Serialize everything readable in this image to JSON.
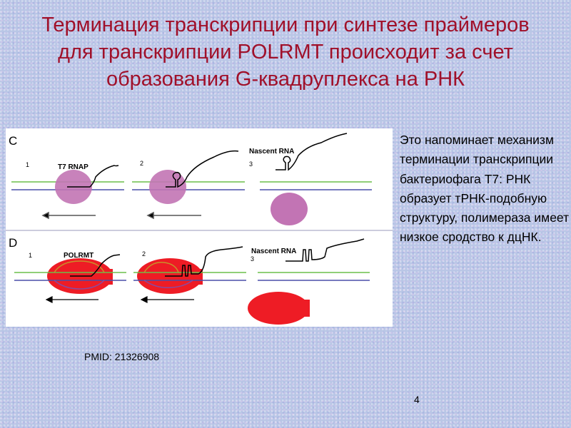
{
  "slide": {
    "title_lines": [
      "Терминация транскрипции при синтезе праймеров",
      "для транскрипции POLRMT происходит за счет",
      "образования G-квадруплекса на РНК"
    ],
    "side_text": "Это напоминает механизм терминации транскрипции бактериофага Т7: РНК образует тРНК-подобную структуру, полимераза имеет низкое сродство к дцНК.",
    "pmid": "PMID: 21326908",
    "page_number": "4"
  },
  "figure": {
    "panel_c": {
      "label": "C",
      "enzyme": "T7 RNAP",
      "steps": [
        "1",
        "2",
        "3"
      ],
      "nascent": "Nascent RNA",
      "enzyme_color": "#c274b4"
    },
    "panel_d": {
      "label": "D",
      "enzyme": "POLRMT",
      "steps": [
        "1",
        "2",
        "3"
      ],
      "nascent": "Nascent RNA",
      "enzyme_color": "#ee1c25"
    },
    "strand_colors": {
      "top": "#6cbf4a",
      "bottom": "#4a4fa8"
    }
  }
}
